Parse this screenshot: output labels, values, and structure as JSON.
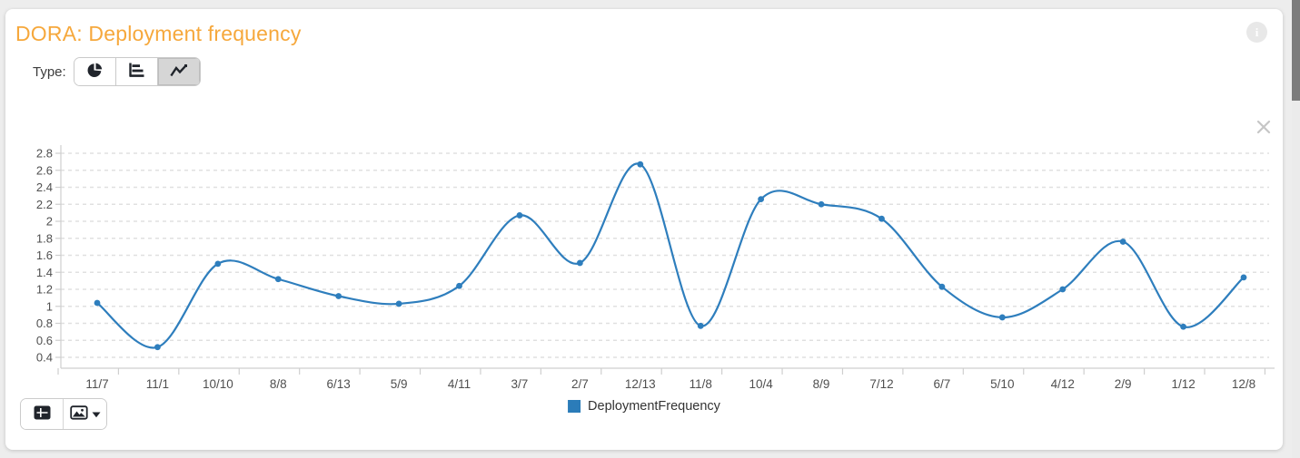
{
  "page": {
    "title": "DORA: Deployment frequency"
  },
  "type_selector": {
    "label": "Type:",
    "options": [
      {
        "id": "pie",
        "icon": "pie-chart-icon",
        "selected": false
      },
      {
        "id": "bar",
        "icon": "bar-chart-icon",
        "selected": false
      },
      {
        "id": "line",
        "icon": "line-chart-icon",
        "selected": true
      }
    ]
  },
  "header_icons": {
    "info": "info-icon",
    "close": "close-icon"
  },
  "toolbar": {
    "buttons": [
      {
        "icon": "table-view-icon"
      },
      {
        "icon": "export-image-icon",
        "caret": "caret-down-icon"
      }
    ]
  },
  "legend": {
    "label": "DeploymentFrequency",
    "color": "#2b7cb9"
  },
  "colors": {
    "title_orange": "#F6A83C",
    "line_blue": "#2e7ebd",
    "grid": "#e0e0e0",
    "axis": "#cfcfcf",
    "axis_text": "#4f4f4f"
  },
  "chart_data": {
    "type": "line",
    "title": "",
    "xlabel": "",
    "ylabel": "",
    "categories": [
      "11/7",
      "11/1",
      "10/10",
      "8/8",
      "6/13",
      "5/9",
      "4/11",
      "3/7",
      "2/7",
      "12/13",
      "11/8",
      "10/4",
      "8/9",
      "7/12",
      "6/7",
      "5/10",
      "4/12",
      "2/9",
      "1/12",
      "12/8"
    ],
    "series": [
      {
        "name": "DeploymentFrequency",
        "values": [
          1.04,
          0.52,
          1.5,
          1.32,
          1.12,
          1.03,
          1.24,
          2.07,
          1.51,
          2.67,
          0.77,
          2.26,
          2.2,
          2.03,
          1.23,
          0.87,
          1.2,
          1.76,
          0.76,
          1.34
        ]
      }
    ],
    "ylim": [
      0.3,
      2.9
    ],
    "yticks": [
      0.4,
      0.6,
      0.8,
      1.0,
      1.2,
      1.4,
      1.6,
      1.8,
      2.0,
      2.2,
      2.4,
      2.6,
      2.8
    ],
    "grid": "dashed-horizontal",
    "legend_position": "bottom",
    "marker": "circle",
    "smooth": true
  }
}
